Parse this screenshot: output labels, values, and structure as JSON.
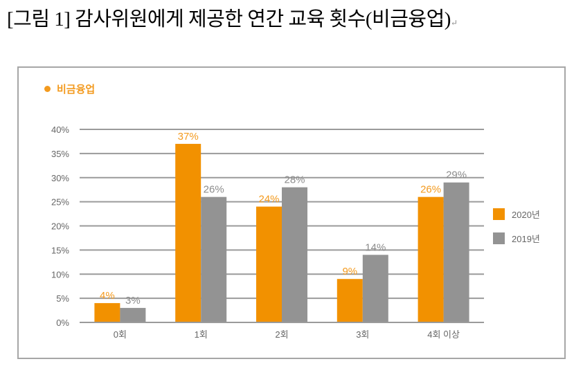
{
  "figure": {
    "title": "[그림 1] 감사위원에게 제공한 연간 교육 횟수(비금융업)",
    "paragraph_mark": "↵"
  },
  "colors": {
    "series_2020": "#f29100",
    "series_2019": "#939393",
    "label_2020": "#f39a1e",
    "label_2019": "#8c8c8c",
    "grid": "#9a9a9a",
    "axis_text": "#666666"
  },
  "chart_data": {
    "type": "bar",
    "title": "비금융업",
    "xlabel": "",
    "ylabel": "",
    "categories": [
      "0회",
      "1회",
      "2회",
      "3회",
      "4회 이상"
    ],
    "series": [
      {
        "name": "2020년",
        "values": [
          4,
          37,
          24,
          9,
          26
        ],
        "labels": [
          "4%",
          "37%",
          "24%",
          "9%",
          "26%"
        ]
      },
      {
        "name": "2019년",
        "values": [
          3,
          26,
          28,
          14,
          29
        ],
        "labels": [
          "3%",
          "26%",
          "28%",
          "14%",
          "29%"
        ]
      }
    ],
    "yticks": [
      "0%",
      "5%",
      "10%",
      "15%",
      "20%",
      "25%",
      "30%",
      "35%",
      "40%"
    ],
    "ylim": [
      0,
      40
    ],
    "grid": true,
    "legend_position": "right"
  }
}
